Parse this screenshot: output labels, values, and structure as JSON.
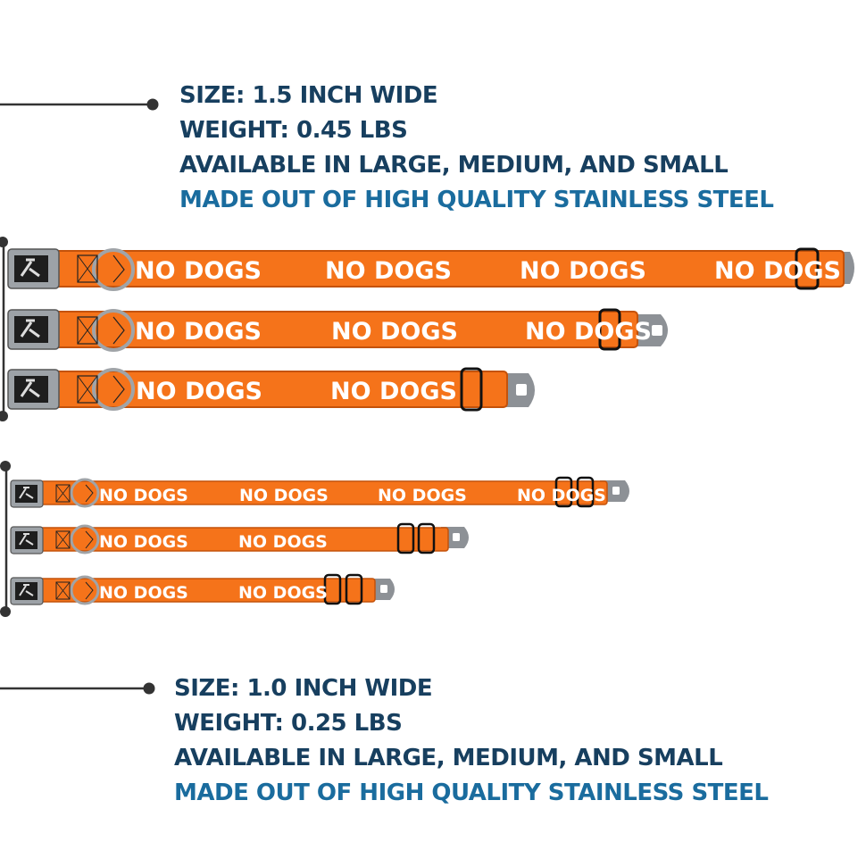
{
  "colors": {
    "spec_text": "#173f5f",
    "spec_accent": "#1a6c9e",
    "strap": "#f5731a",
    "strap_edge": "#c4520a",
    "strap_text": "#ffffff",
    "buckle": "#8d9196",
    "connector_line": "#333333"
  },
  "top_spec": {
    "size": "SIZE: 1.5 INCH WIDE",
    "weight": "WEIGHT: 0.45 LBS",
    "availability": "AVAILABLE IN LARGE, MEDIUM, AND SMALL",
    "material": "MADE OUT OF HIGH QUALITY STAINLESS STEEL"
  },
  "bottom_spec": {
    "size": "SIZE: 1.0 INCH WIDE",
    "weight": "WEIGHT: 0.25 LBS",
    "availability": "AVAILABLE IN LARGE, MEDIUM, AND SMALL",
    "material": "MADE OUT OF HIGH QUALITY STAINLESS STEEL"
  },
  "strap_text": "NO DOGS",
  "collars": [
    {
      "group": "1.5 inch",
      "size": "large"
    },
    {
      "group": "1.5 inch",
      "size": "medium"
    },
    {
      "group": "1.5 inch",
      "size": "small"
    },
    {
      "group": "1.0 inch",
      "size": "large"
    },
    {
      "group": "1.0 inch",
      "size": "medium"
    },
    {
      "group": "1.0 inch",
      "size": "small"
    }
  ]
}
